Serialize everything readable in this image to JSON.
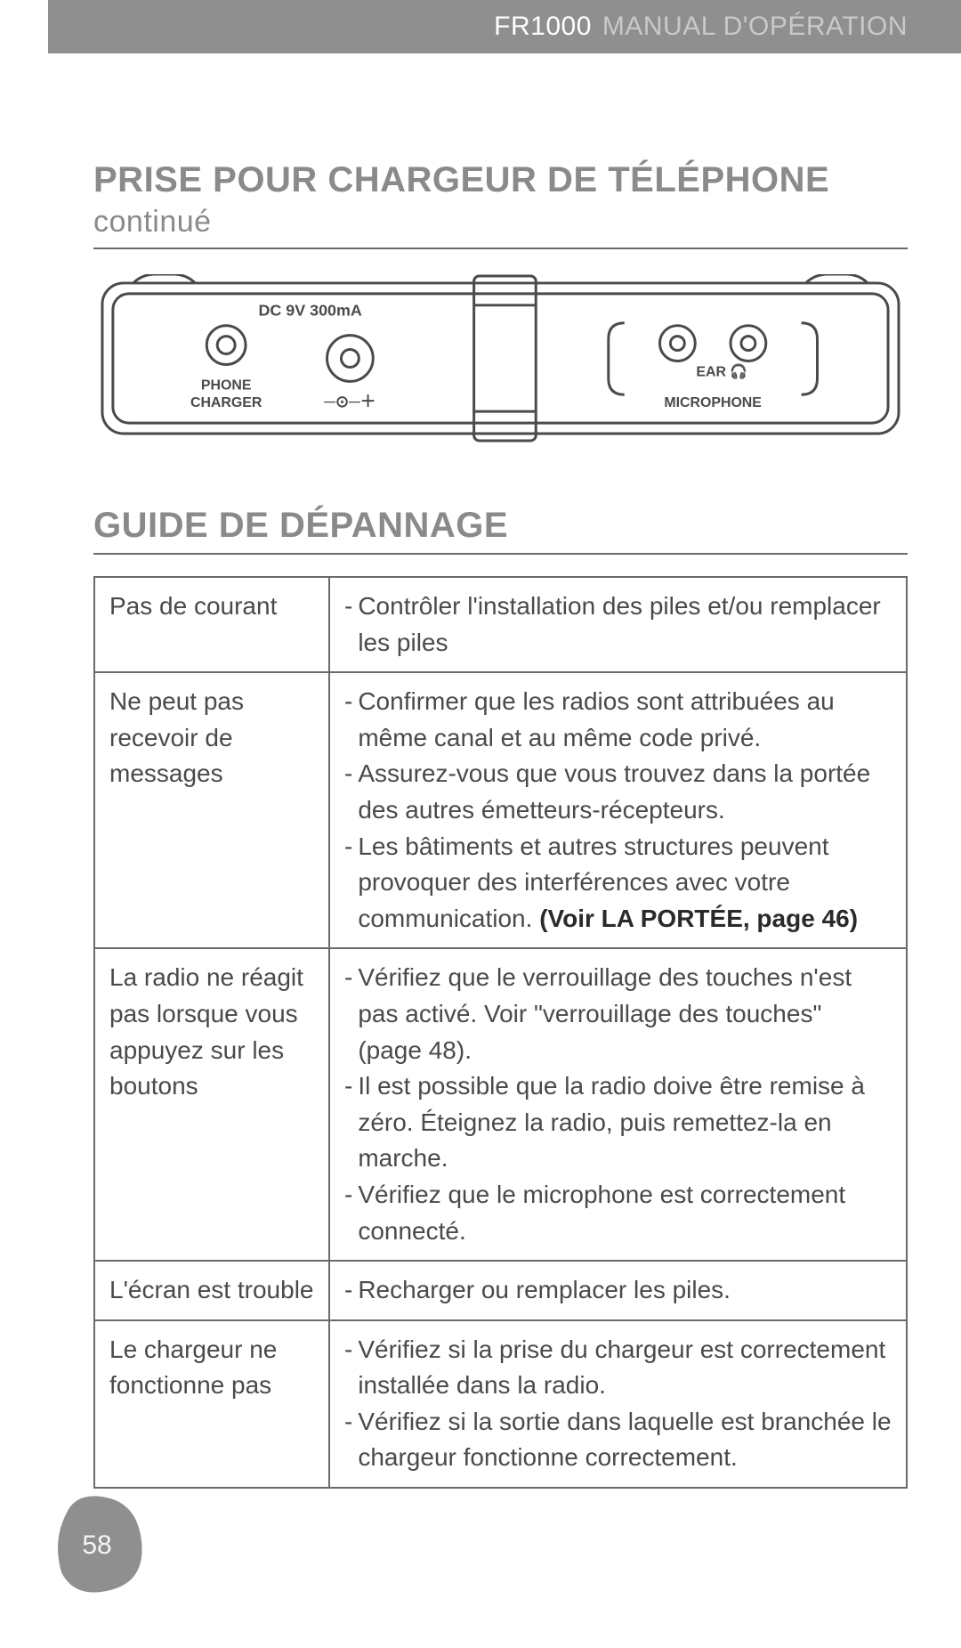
{
  "header": {
    "model": "FR1000",
    "title": "MANUAL D'OPÉRATION",
    "bg_color": "#8f8f8f",
    "model_color": "#ffffff",
    "title_color": "#c9c9c9"
  },
  "section1": {
    "title_main": "PRISE POUR CHARGEUR DE TÉLÉPHONE",
    "title_cont": "continué"
  },
  "diagram": {
    "type": "technical-line-drawing",
    "stroke_color": "#4a4a4a",
    "stroke_width": 3,
    "labels": {
      "dc": "DC 9V 300mA",
      "phone_charger_l1": "PHONE",
      "phone_charger_l2": "CHARGER",
      "ear": "EAR",
      "microphone": "MICROPHONE"
    }
  },
  "section2": {
    "title": "GUIDE DE DÉPANNAGE"
  },
  "table": {
    "border_color": "#6a6a6a",
    "text_color": "#4a4a4a",
    "fontsize": 28,
    "rows": [
      {
        "problem": "Pas de courant",
        "solutions": [
          "Contrôler l'installation des piles et/ou remplacer les piles"
        ]
      },
      {
        "problem": "Ne peut pas recevoir de messages",
        "solutions": [
          "Confirmer que les radios sont attribuées au même canal et au même code privé.",
          "Assurez-vous que vous trouvez dans la portée des autres émetteurs-récepteurs.",
          "Les bâtiments et autres structures peuvent provoquer des interférences avec votre communication."
        ],
        "bold_ref": " (Voir LA PORTÉE, page 46)"
      },
      {
        "problem": "La radio ne réagit pas lorsque vous appuyez sur les boutons",
        "solutions": [
          "Vérifiez que le verrouillage des touches n'est pas activé. Voir \"verrouillage des touches\" (page 48).",
          "Il est possible que la radio doive être remise à zéro. Éteignez la radio, puis remettez-la en marche.",
          "Vérifiez que le microphone est correctement connecté."
        ]
      },
      {
        "problem": "L'écran est trouble",
        "solutions": [
          "Recharger ou remplacer les piles."
        ]
      },
      {
        "problem": "Le chargeur ne fonctionne pas",
        "solutions": [
          "Vérifiez si la prise du chargeur est correctement installée dans la radio.",
          "Vérifiez si la sortie dans laquelle est branchée le chargeur fonctionne correctement."
        ]
      }
    ]
  },
  "page_number": {
    "value": "58",
    "pebble_color": "#8f8f8f",
    "text_color": "#f5f5f5"
  }
}
